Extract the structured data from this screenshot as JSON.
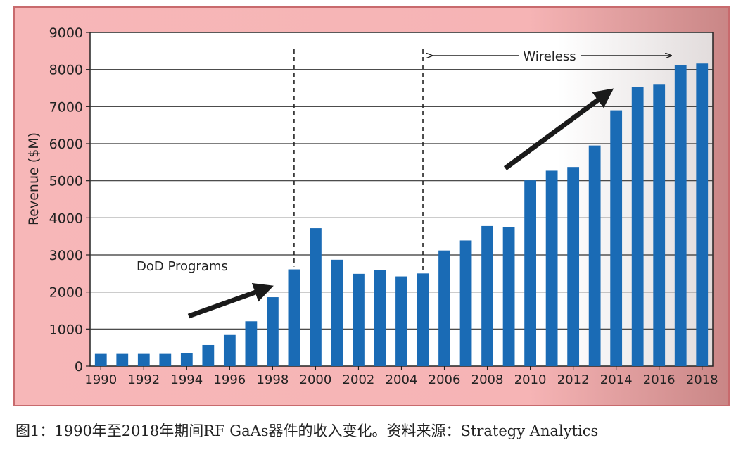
{
  "figure": {
    "caption": "图1：1990年至2018年期间RF GaAs器件的收入变化。资料来源：Strategy Analytics"
  },
  "colors": {
    "background_panel": "#f7b7b8",
    "bar": "#1a6bb5",
    "plot_bg": "#ffffff",
    "arrow": "#1a1a1a"
  },
  "chart_data": {
    "type": "bar",
    "title": "",
    "xlabel": "",
    "ylabel": "Revenue ($M)",
    "ylim": [
      0,
      9000
    ],
    "yticks": [
      "0",
      "1000",
      "2000",
      "3000",
      "4000",
      "5000",
      "6000",
      "7000",
      "8000",
      "9000"
    ],
    "categories": [
      "1990",
      "1991",
      "1992",
      "1993",
      "1994",
      "1995",
      "1996",
      "1997",
      "1998",
      "1999",
      "2000",
      "2001",
      "2002",
      "2003",
      "2004",
      "2005",
      "2006",
      "2007",
      "2008",
      "2009",
      "2010",
      "2011",
      "2012",
      "2013",
      "2014",
      "2015",
      "2016",
      "2017",
      "2018"
    ],
    "xtick_labels": [
      "1990",
      "1992",
      "1994",
      "1996",
      "1998",
      "2000",
      "2002",
      "2004",
      "2006",
      "2008",
      "2010",
      "2012",
      "2014",
      "2016",
      "2018"
    ],
    "values": [
      330,
      330,
      330,
      330,
      360,
      570,
      840,
      1210,
      1860,
      2610,
      3720,
      2870,
      2490,
      2590,
      2420,
      2500,
      3120,
      3390,
      3780,
      3750,
      5010,
      5270,
      5370,
      5950,
      6900,
      7530,
      7590,
      8120,
      8160
    ],
    "grid": "horizontal",
    "annotations": [
      {
        "text": "DoD Programs"
      },
      {
        "text": "Wireless"
      }
    ],
    "dashed_lines_at": [
      "1999",
      "2005"
    ]
  }
}
